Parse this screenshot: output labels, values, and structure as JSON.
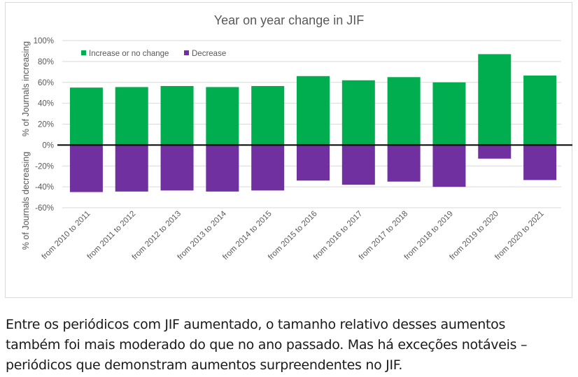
{
  "chart_data": {
    "type": "bar",
    "stacked": "diverging",
    "title": "Year on year change in JIF",
    "ylabel_positive": "% of Journals increasing",
    "ylabel_negative": "% of Journals decreasing",
    "xlabel": "",
    "ylim": [
      -60,
      100
    ],
    "yticks": [
      100,
      80,
      60,
      40,
      20,
      0,
      -20,
      -40,
      -60
    ],
    "ytick_labels": [
      "100%",
      "80%",
      "60%",
      "40%",
      "20%",
      "0%",
      "-20%",
      "-40%",
      "-60%"
    ],
    "grid": true,
    "legend_position": "top-left",
    "categories": [
      "from 2010 to 2011",
      "from 2011 to 2012",
      "from 2012 to 2013",
      "from 2013 to 2014",
      "from 2014 to 2015",
      "from 2015 to 2016",
      "from 2016 to 2017",
      "from 2017 to 2018",
      "from 2018 to 2019",
      "from 2019 to 2020",
      "from 2020 to 2021"
    ],
    "series": [
      {
        "name": "Increase or no change",
        "color": "#00ad4f",
        "values": [
          55,
          55.5,
          56.5,
          55.5,
          56.5,
          66,
          62,
          65,
          60,
          87,
          66.5
        ]
      },
      {
        "name": "Decrease",
        "color": "#7030a0",
        "values": [
          -45,
          -44.5,
          -43.5,
          -44.5,
          -43.5,
          -34,
          -38,
          -35,
          -40,
          -13,
          -33.5
        ]
      }
    ]
  },
  "caption": {
    "lines": [
      "Entre os periódicos com JIF aumentado, o tamanho relativo desses aumentos",
      "também foi mais moderado do que no ano passado. Mas há exceções notáveis –",
      "periódicos que demonstram aumentos surpreendentes no JIF."
    ]
  }
}
